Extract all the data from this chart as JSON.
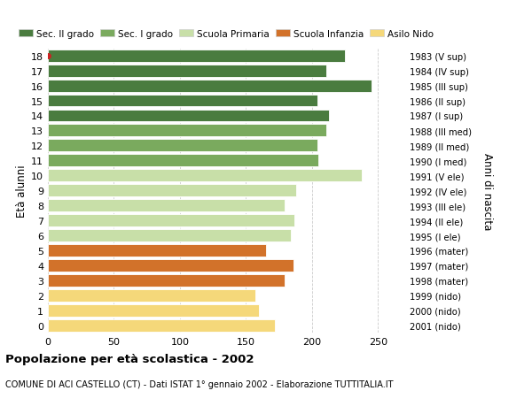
{
  "ages": [
    18,
    17,
    16,
    15,
    14,
    13,
    12,
    11,
    10,
    9,
    8,
    7,
    6,
    5,
    4,
    3,
    2,
    1,
    0
  ],
  "values": [
    225,
    211,
    245,
    204,
    213,
    211,
    204,
    205,
    238,
    188,
    179,
    187,
    184,
    165,
    186,
    179,
    157,
    160,
    172
  ],
  "right_labels": [
    "1983 (V sup)",
    "1984 (IV sup)",
    "1985 (III sup)",
    "1986 (II sup)",
    "1987 (I sup)",
    "1988 (III med)",
    "1989 (II med)",
    "1990 (I med)",
    "1991 (V ele)",
    "1992 (IV ele)",
    "1993 (III ele)",
    "1994 (II ele)",
    "1995 (I ele)",
    "1996 (mater)",
    "1997 (mater)",
    "1998 (mater)",
    "1999 (nido)",
    "2000 (nido)",
    "2001 (nido)"
  ],
  "bar_colors": [
    "#4a7c3f",
    "#4a7c3f",
    "#4a7c3f",
    "#4a7c3f",
    "#4a7c3f",
    "#7aaa5e",
    "#7aaa5e",
    "#7aaa5e",
    "#c8dfa8",
    "#c8dfa8",
    "#c8dfa8",
    "#c8dfa8",
    "#c8dfa8",
    "#d2722a",
    "#d2722a",
    "#d2722a",
    "#f5d87a",
    "#f5d87a",
    "#f5d87a"
  ],
  "legend_labels": [
    "Sec. II grado",
    "Sec. I grado",
    "Scuola Primaria",
    "Scuola Infanzia",
    "Asilo Nido"
  ],
  "legend_colors": [
    "#4a7c3f",
    "#7aaa5e",
    "#c8dfa8",
    "#d2722a",
    "#f5d87a"
  ],
  "ylabel": "Età alunni",
  "right_ylabel": "Anni di nascita",
  "title": "Popolazione per età scolastica - 2002",
  "subtitle": "COMUNE DI ACI CASTELLO (CT) - Dati ISTAT 1° gennaio 2002 - Elaborazione TUTTITALIA.IT",
  "xlim": [
    0,
    270
  ],
  "xticks": [
    0,
    50,
    100,
    150,
    200,
    250
  ],
  "bg_color": "#ffffff",
  "grid_color": "#cccccc",
  "bar_edgecolor": "#ffffff",
  "dot_color": "#cc2222"
}
